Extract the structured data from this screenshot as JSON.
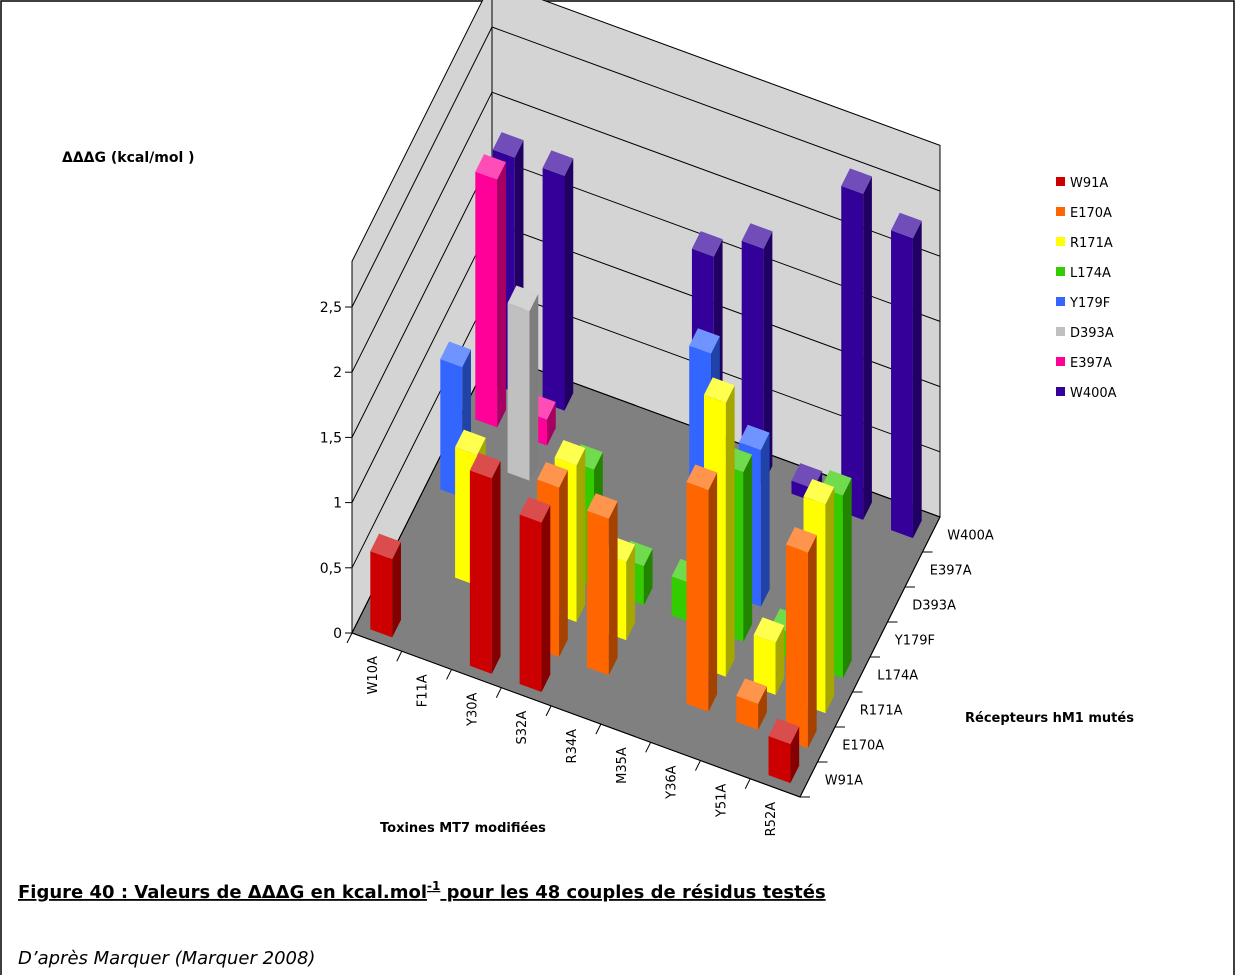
{
  "chart_data": {
    "type": "bar3d",
    "axis_title": "ΔΔΔG   (kcal/mol )",
    "x_title": "Toxines MT7 modifiées",
    "z_title": "Récepteurs hM1 mutés",
    "categories": [
      "W10A",
      "F11A",
      "Y30A",
      "S32A",
      "R34A",
      "M35A",
      "Y36A",
      "Y51A",
      "R52A"
    ],
    "ylim": [
      0,
      2.5
    ],
    "yticks": [
      0,
      {
        "value": 0.5,
        "label": "0,5"
      },
      1,
      {
        "value": 1.5,
        "label": "1,5"
      },
      2,
      {
        "value": 2.5,
        "label": "2,5"
      }
    ],
    "grid": true,
    "legend": "right",
    "series": [
      {
        "name": "W91A",
        "color": "#cc0000",
        "values": [
          0.6,
          null,
          1.5,
          1.3,
          null,
          null,
          null,
          null,
          0.3
        ]
      },
      {
        "name": "E170A",
        "color": "#ff6600",
        "values": [
          null,
          null,
          null,
          1.3,
          1.2,
          null,
          1.7,
          0.2,
          1.5
        ]
      },
      {
        "name": "R171A",
        "color": "#ffff00",
        "values": [
          null,
          1.0,
          null,
          1.2,
          0.6,
          null,
          2.1,
          0.4,
          1.6
        ]
      },
      {
        "name": "L174A",
        "color": "#33cc00",
        "values": [
          null,
          null,
          null,
          0.9,
          0.3,
          0.3,
          1.3,
          0.2,
          1.4
        ]
      },
      {
        "name": "Y179F",
        "color": "#3366ff",
        "values": [
          1.0,
          null,
          null,
          null,
          null,
          1.8,
          1.2,
          null,
          null
        ]
      },
      {
        "name": "D393A",
        "color": "#c0c0c0",
        "values": [
          null,
          1.3,
          null,
          null,
          null,
          null,
          null,
          null,
          null
        ]
      },
      {
        "name": "E397A",
        "color": "#ff0099",
        "values": [
          1.9,
          0.2,
          null,
          null,
          null,
          null,
          null,
          null,
          null
        ]
      },
      {
        "name": "W400A",
        "color": "#330099",
        "values": [
          1.8,
          1.8,
          null,
          null,
          1.6,
          1.8,
          0.1,
          2.5,
          2.3
        ]
      }
    ]
  },
  "caption": {
    "before": "Figure 40 : Valeurs de ΔΔΔG en kcal.mol",
    "sup": "-1",
    "after": " pour les 48 couples de résidus testés"
  },
  "source": "D’après Marquer (Marquer 2008)"
}
